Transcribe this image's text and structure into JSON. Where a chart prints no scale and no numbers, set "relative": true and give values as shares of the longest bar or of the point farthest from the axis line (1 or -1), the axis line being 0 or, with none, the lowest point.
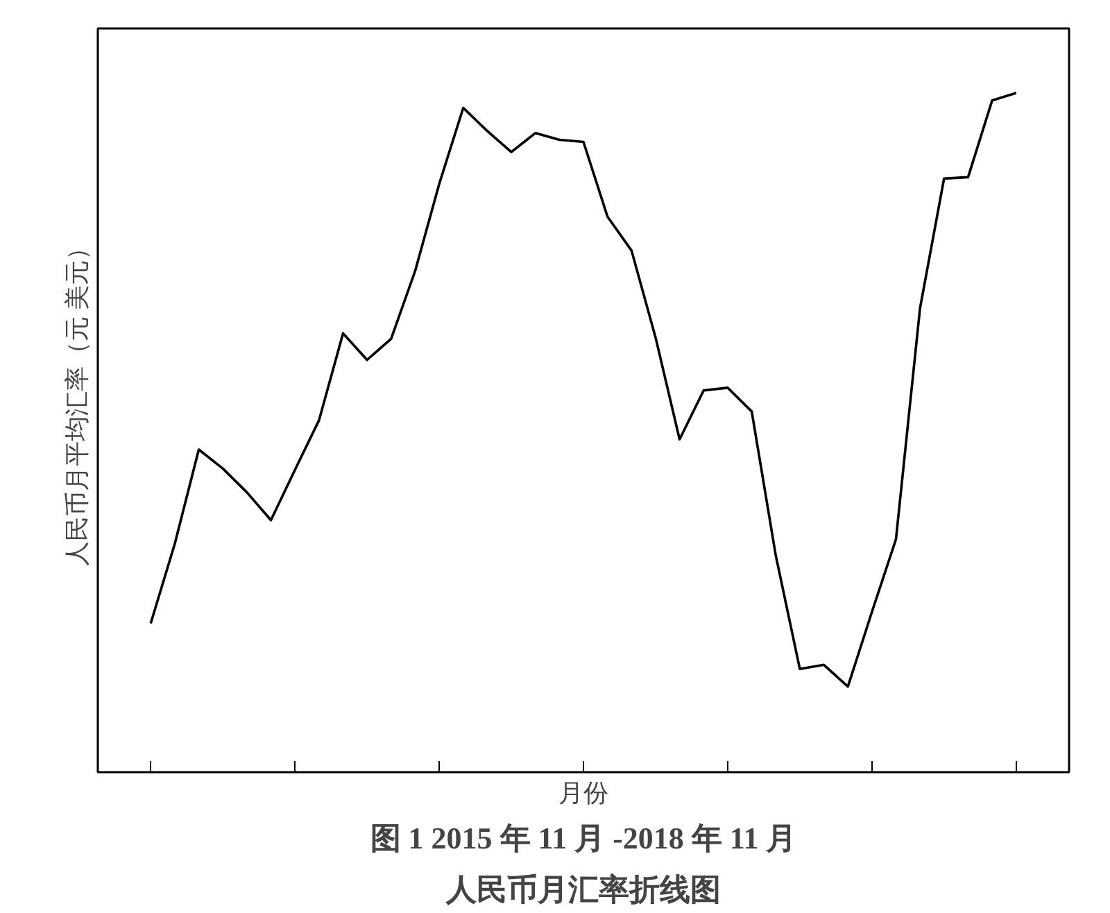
{
  "chart_data": {
    "type": "line",
    "title": "图 1 2015 年 11 月 -2018 年 11 月",
    "subtitle": "人民币月汇率折线图",
    "xlabel": "月份",
    "ylabel": "人民币月平均汇率（元 美元）",
    "relative": true,
    "categories": [
      null,
      null,
      null,
      null,
      null,
      null,
      null,
      null,
      null,
      null,
      null,
      null,
      null,
      null,
      null,
      null,
      null,
      null,
      null,
      null,
      null,
      null,
      null,
      null,
      null,
      null,
      null,
      null,
      null,
      null,
      null,
      null,
      null,
      null,
      null,
      null,
      null
    ],
    "series": [
      {
        "color": "#000000",
        "values": [
          0.219,
          0.336,
          0.475,
          0.447,
          0.412,
          0.371,
          0.445,
          0.518,
          0.646,
          0.607,
          0.638,
          0.738,
          0.866,
          0.978,
          0.944,
          0.913,
          0.941,
          0.931,
          0.928,
          0.818,
          0.768,
          0.64,
          0.49,
          0.562,
          0.566,
          0.531,
          0.319,
          0.152,
          0.158,
          0.126,
          0.236,
          0.343,
          0.683,
          0.874,
          0.876,
          0.989,
          1.0
        ]
      }
    ],
    "grid": false,
    "marker": "none",
    "line_style": "solid"
  }
}
